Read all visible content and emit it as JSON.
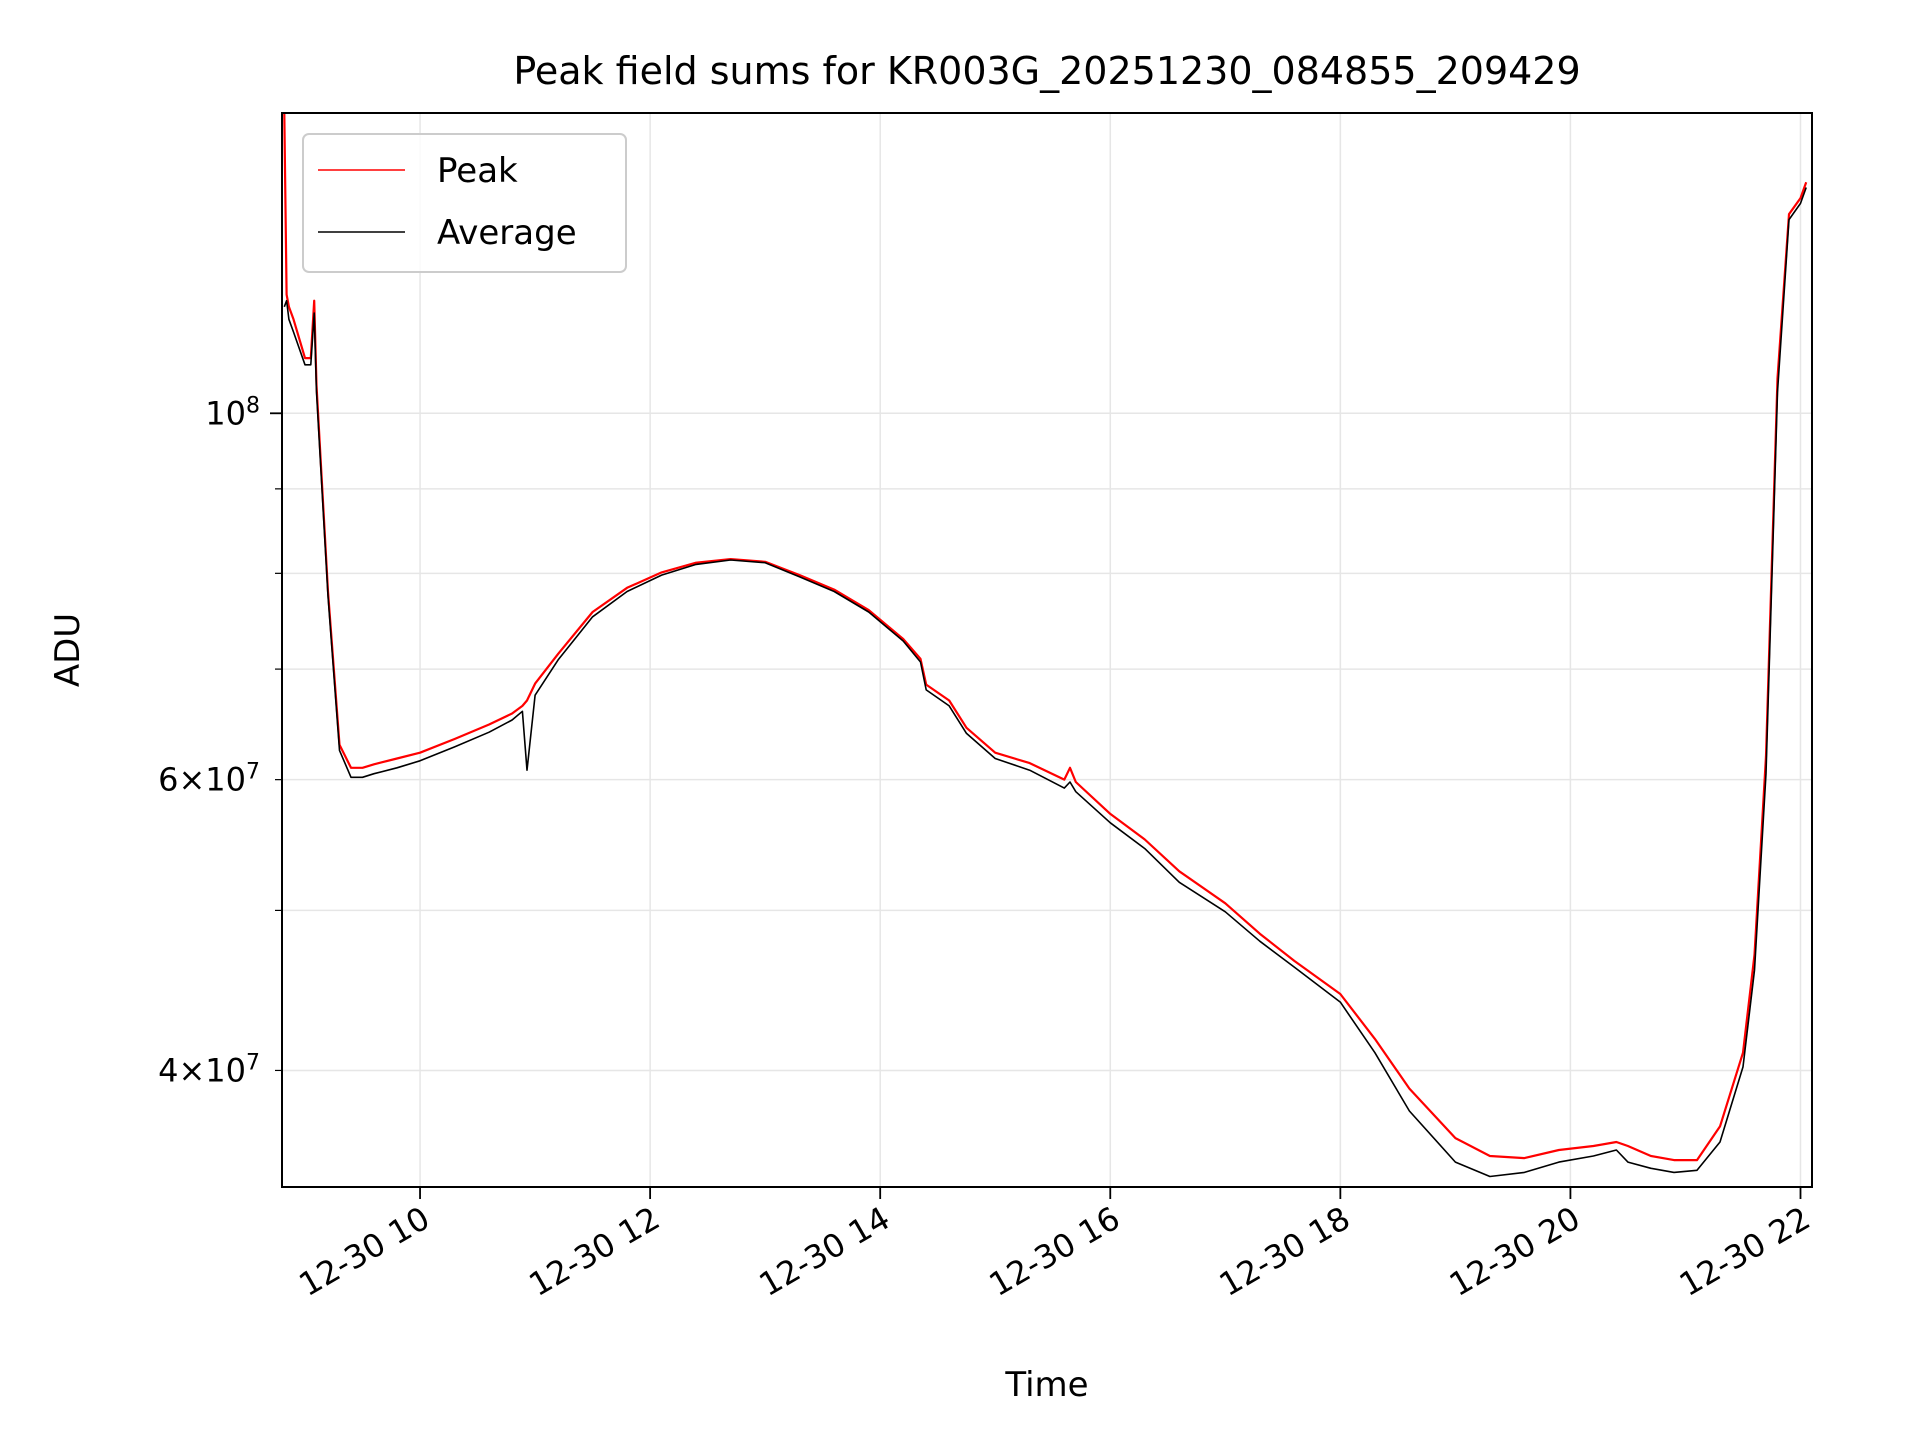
{
  "chart_data": {
    "type": "line",
    "title": "Peak field sums for KR003G_20251230_084855_209429",
    "xlabel": "Time",
    "ylabel": "ADU",
    "yscale": "log",
    "xlim": [
      8.8,
      22.1
    ],
    "ylim": [
      34000000,
      152000000
    ],
    "grid": true,
    "legend_position": "upper-left",
    "x_ticks": [
      {
        "value": 10,
        "label": "12-30 10"
      },
      {
        "value": 12,
        "label": "12-30 12"
      },
      {
        "value": 14,
        "label": "12-30 14"
      },
      {
        "value": 16,
        "label": "12-30 16"
      },
      {
        "value": 18,
        "label": "12-30 18"
      },
      {
        "value": 20,
        "label": "12-30 20"
      },
      {
        "value": 22,
        "label": "12-30 22"
      }
    ],
    "y_ticks_major": [
      {
        "value": 100000000,
        "mantissa": "10",
        "exponent": "8"
      }
    ],
    "y_ticks_minor": [
      {
        "value": 40000000,
        "mantissa": "4×10",
        "exponent": "7"
      },
      {
        "value": 60000000,
        "mantissa": "6×10",
        "exponent": "7"
      }
    ],
    "y_ticks_minor_unlabeled": [
      50000000,
      70000000,
      80000000,
      90000000
    ],
    "series": [
      {
        "name": "Peak",
        "color": "#ff0000",
        "x": [
          8.82,
          8.84,
          8.86,
          8.9,
          9.0,
          9.05,
          9.08,
          9.1,
          9.2,
          9.3,
          9.4,
          9.5,
          9.6,
          9.8,
          10.0,
          10.3,
          10.6,
          10.8,
          10.89,
          10.93,
          11.0,
          11.2,
          11.5,
          11.8,
          12.1,
          12.4,
          12.7,
          13.0,
          13.3,
          13.6,
          13.9,
          14.2,
          14.35,
          14.4,
          14.6,
          14.75,
          15.0,
          15.3,
          15.6,
          15.65,
          15.7,
          16.0,
          16.3,
          16.6,
          17.0,
          17.3,
          17.6,
          18.0,
          18.3,
          18.6,
          19.0,
          19.3,
          19.6,
          19.9,
          20.2,
          20.4,
          20.5,
          20.7,
          20.9,
          21.1,
          21.3,
          21.5,
          21.6,
          21.7,
          21.8,
          21.9,
          22.0,
          22.05
        ],
        "values": [
          160000000,
          118000000,
          116000000,
          114000000,
          108000000,
          108000000,
          117000000,
          104000000,
          78000000,
          63000000,
          61000000,
          61000000,
          61300000,
          61800000,
          62300000,
          63500000,
          64800000,
          65800000,
          66500000,
          67000000,
          68600000,
          71500000,
          75800000,
          78400000,
          80100000,
          81200000,
          81600000,
          81300000,
          79800000,
          78200000,
          76000000,
          73000000,
          71000000,
          68500000,
          67000000,
          64500000,
          62300000,
          61400000,
          60000000,
          61000000,
          59800000,
          57200000,
          55200000,
          52800000,
          50500000,
          48400000,
          46600000,
          44500000,
          41800000,
          39000000,
          36400000,
          35500000,
          35400000,
          35800000,
          36000000,
          36200000,
          36000000,
          35500000,
          35300000,
          35300000,
          37000000,
          41000000,
          47000000,
          62000000,
          105000000,
          132000000,
          135000000,
          138000000
        ]
      },
      {
        "name": "Average",
        "color": "#000000",
        "x": [
          8.82,
          8.84,
          8.86,
          8.9,
          9.0,
          9.05,
          9.08,
          9.1,
          9.2,
          9.3,
          9.4,
          9.5,
          9.6,
          9.8,
          10.0,
          10.3,
          10.6,
          10.8,
          10.89,
          10.93,
          11.0,
          11.2,
          11.5,
          11.8,
          12.1,
          12.4,
          12.7,
          13.0,
          13.3,
          13.6,
          13.9,
          14.2,
          14.35,
          14.4,
          14.6,
          14.75,
          15.0,
          15.3,
          15.6,
          15.65,
          15.7,
          16.0,
          16.3,
          16.6,
          17.0,
          17.3,
          17.6,
          18.0,
          18.3,
          18.6,
          19.0,
          19.3,
          19.6,
          19.9,
          20.2,
          20.4,
          20.5,
          20.7,
          20.9,
          21.1,
          21.3,
          21.5,
          21.6,
          21.7,
          21.8,
          21.9,
          22.0,
          22.05
        ],
        "values": [
          116000000,
          117000000,
          114000000,
          112000000,
          107000000,
          107000000,
          115000000,
          103000000,
          77500000,
          62500000,
          60200000,
          60200000,
          60500000,
          61000000,
          61600000,
          62800000,
          64100000,
          65200000,
          66000000,
          60800000,
          67500000,
          70900000,
          75300000,
          78000000,
          79800000,
          81000000,
          81500000,
          81200000,
          79600000,
          78000000,
          75800000,
          72800000,
          70700000,
          68000000,
          66500000,
          64000000,
          61800000,
          60800000,
          59300000,
          59800000,
          59000000,
          56500000,
          54500000,
          52000000,
          49900000,
          47900000,
          46200000,
          44000000,
          41000000,
          37800000,
          35200000,
          34500000,
          34700000,
          35200000,
          35500000,
          35800000,
          35200000,
          34900000,
          34700000,
          34800000,
          36200000,
          40200000,
          46000000,
          60500000,
          103000000,
          131000000,
          134000000,
          137000000
        ]
      }
    ]
  }
}
